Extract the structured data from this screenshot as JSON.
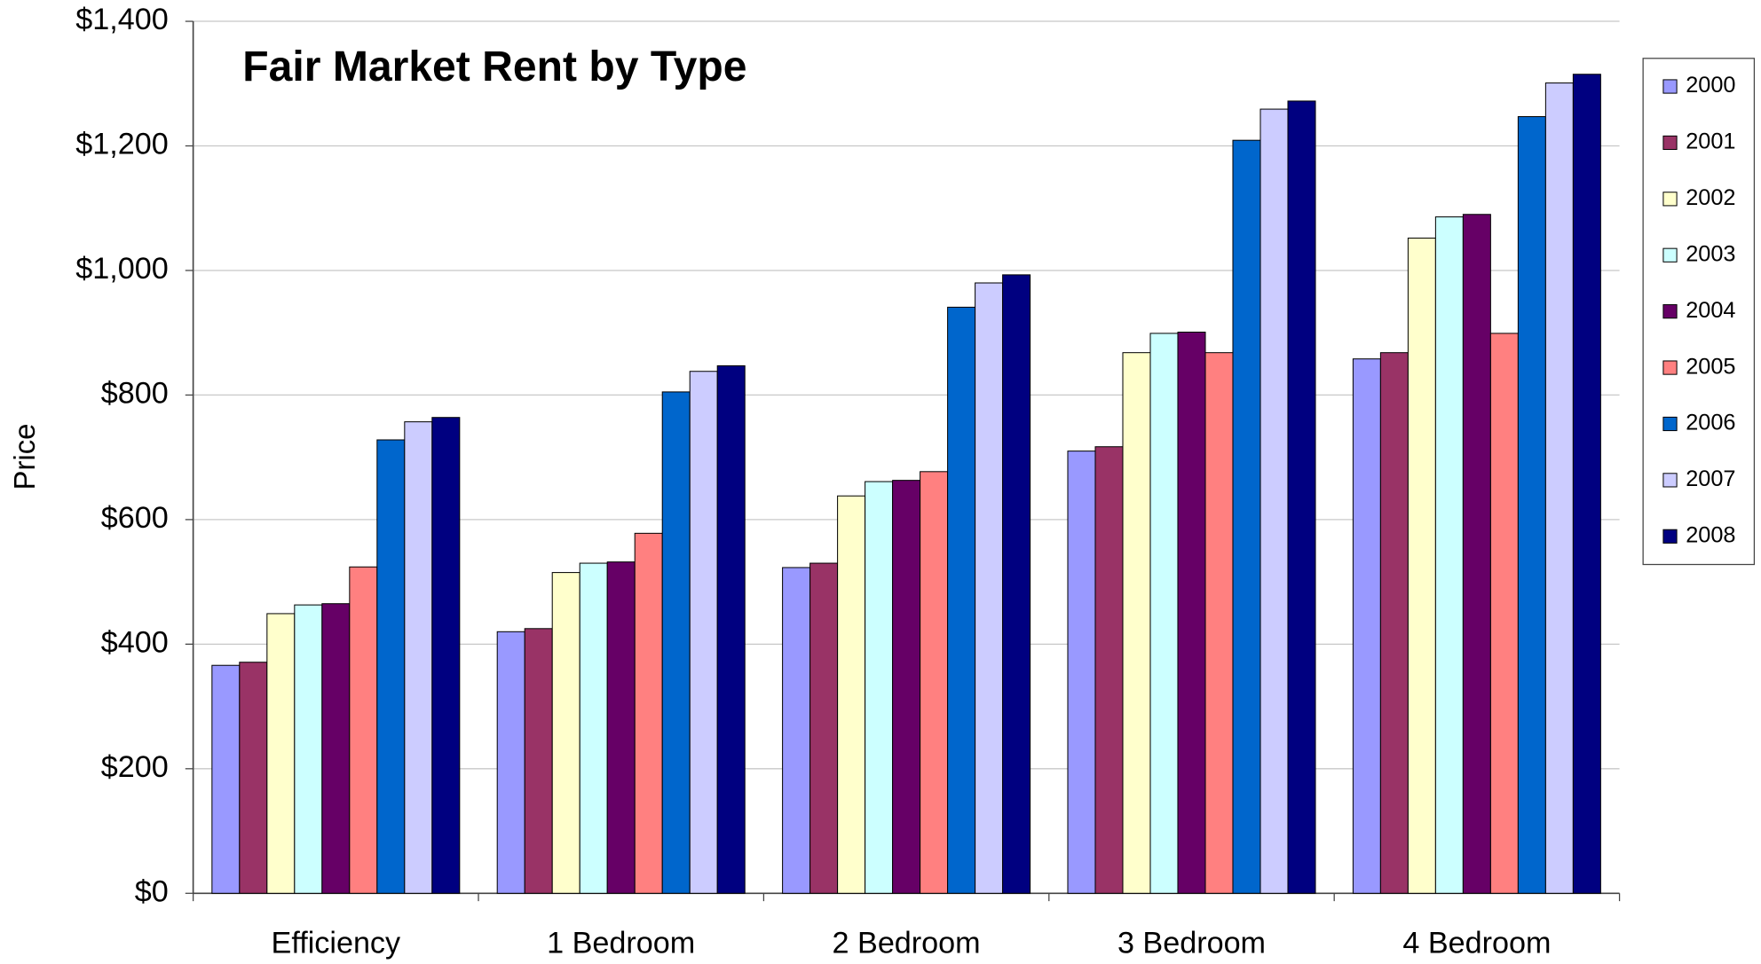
{
  "chart_data": {
    "type": "bar",
    "title": "Fair Market Rent by Type",
    "ylabel": "Price",
    "categories": [
      "Efficiency",
      "1 Bedroom",
      "2 Bedroom",
      "3 Bedroom",
      "4 Bedroom"
    ],
    "series": [
      {
        "name": "2000",
        "color": "#9999ff",
        "values": [
          366,
          420,
          523,
          710,
          858
        ]
      },
      {
        "name": "2001",
        "color": "#993366",
        "values": [
          371,
          425,
          530,
          717,
          868
        ]
      },
      {
        "name": "2002",
        "color": "#ffffcc",
        "values": [
          449,
          515,
          638,
          868,
          1052
        ]
      },
      {
        "name": "2003",
        "color": "#ccffff",
        "values": [
          463,
          530,
          661,
          899,
          1086
        ]
      },
      {
        "name": "2004",
        "color": "#660066",
        "values": [
          465,
          532,
          663,
          901,
          1090
        ]
      },
      {
        "name": "2005",
        "color": "#ff8080",
        "values": [
          524,
          578,
          677,
          868,
          899
        ]
      },
      {
        "name": "2006",
        "color": "#0066cc",
        "values": [
          728,
          805,
          941,
          1209,
          1247
        ]
      },
      {
        "name": "2007",
        "color": "#ccccff",
        "values": [
          757,
          838,
          980,
          1259,
          1301
        ]
      },
      {
        "name": "2008",
        "color": "#000080",
        "values": [
          764,
          847,
          993,
          1272,
          1315
        ]
      }
    ],
    "ylim": [
      0,
      1400
    ],
    "yticks": [
      {
        "value": 0,
        "label": "$0"
      },
      {
        "value": 200,
        "label": "$200"
      },
      {
        "value": 400,
        "label": "$400"
      },
      {
        "value": 600,
        "label": "$600"
      },
      {
        "value": 800,
        "label": "$800"
      },
      {
        "value": 1000,
        "label": "$1,000"
      },
      {
        "value": 1200,
        "label": "$1,200"
      },
      {
        "value": 1400,
        "label": "$1,400"
      }
    ],
    "grid": true,
    "legend": "right"
  }
}
